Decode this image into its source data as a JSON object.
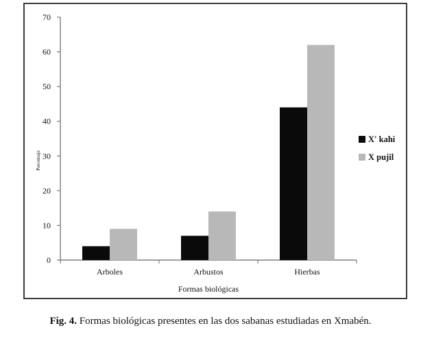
{
  "caption": {
    "label": "Fig. 4.",
    "text": "Formas biológicas presentes en las dos sabanas estudiadas en Xmabén."
  },
  "colors": {
    "series_1": "#0a0a0a",
    "series_2": "#b8b8b8",
    "axis": "#666666",
    "frame": "#3a3a3a"
  },
  "chart_data": {
    "type": "bar",
    "title": "",
    "xlabel": "Formas biológicas",
    "ylabel": "Porcentaje",
    "categories": [
      "Arboles",
      "Arbustos",
      "Hierbas"
    ],
    "series": [
      {
        "name": "X' kahi",
        "values": [
          4,
          7,
          44
        ]
      },
      {
        "name": "X pujil",
        "values": [
          9,
          14,
          62
        ]
      }
    ],
    "ylim": [
      0,
      70
    ],
    "yticks": [
      0,
      10,
      20,
      30,
      40,
      50,
      60,
      70
    ],
    "grid": false,
    "legend": "right"
  }
}
